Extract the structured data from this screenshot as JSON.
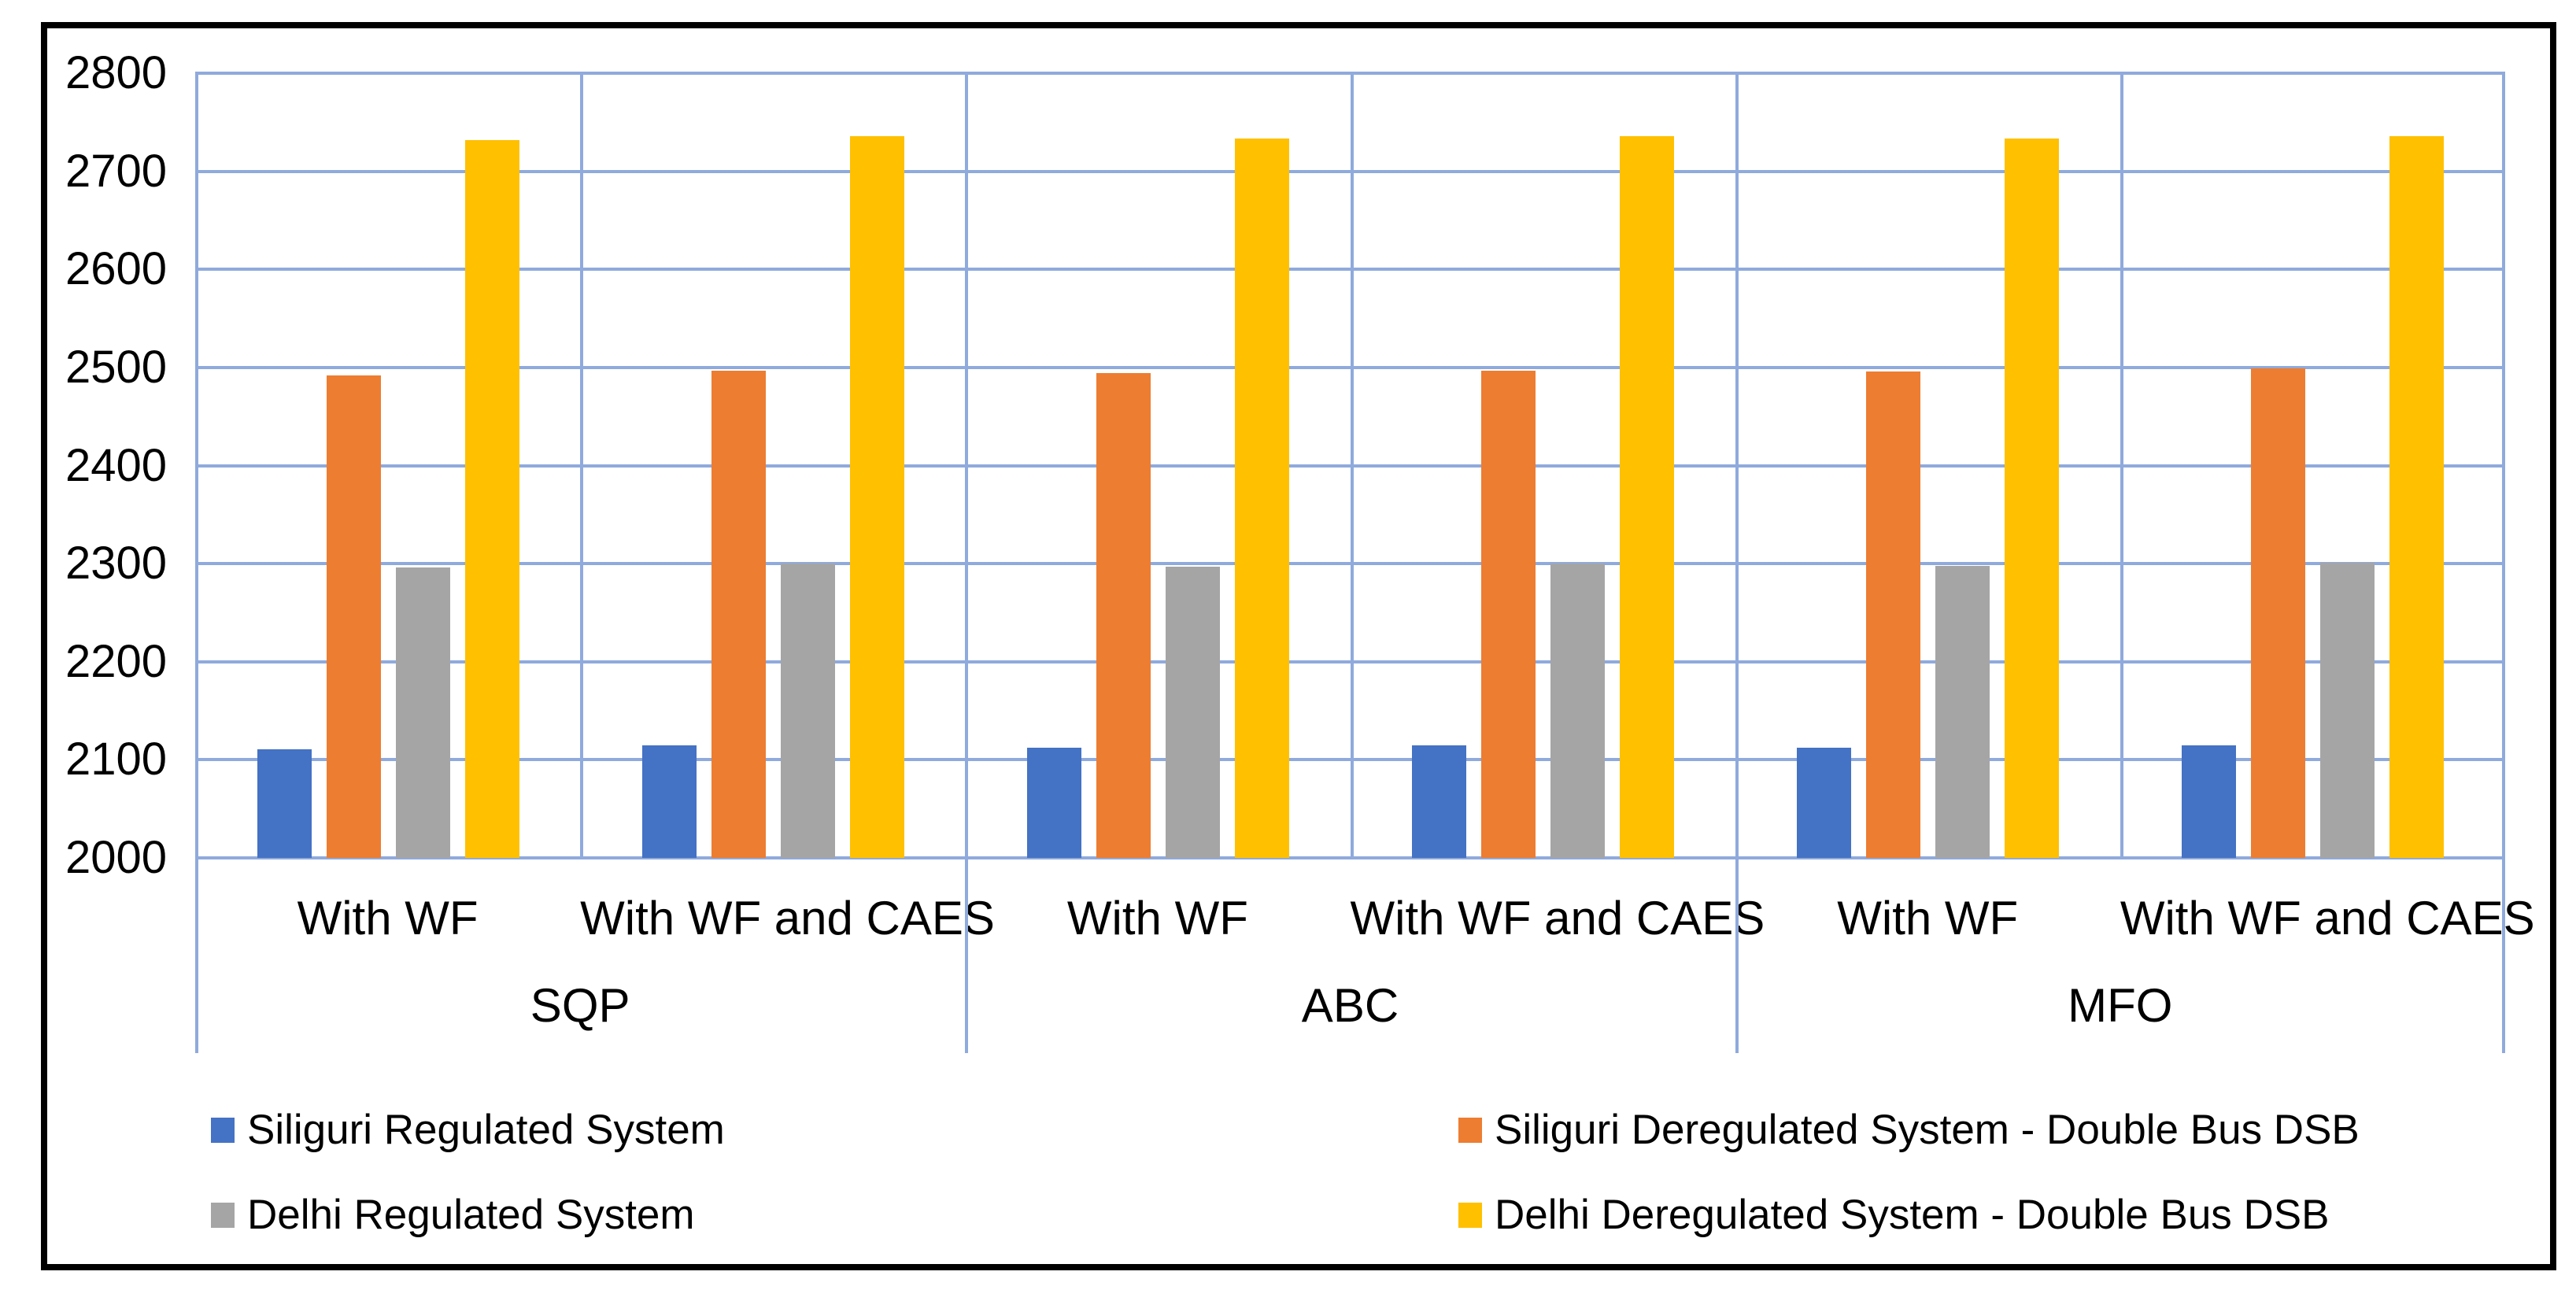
{
  "figure": {
    "background": "#ffffff",
    "border_color": "#000000",
    "gridline_color": "#8FAADC",
    "text_color": "#000000"
  },
  "chart_data": {
    "type": "bar",
    "title": "",
    "xlabel": "",
    "ylabel": "",
    "ylim": [
      2000,
      2800
    ],
    "yticks": [
      2000,
      2100,
      2200,
      2300,
      2400,
      2500,
      2600,
      2700,
      2800
    ],
    "grid": true,
    "legend_position": "bottom",
    "groups": [
      "SQP",
      "ABC",
      "MFO"
    ],
    "categories": [
      "With WF",
      "With WF and CAES",
      "With WF",
      "With WF and CAES",
      "With WF",
      "With WF and CAES"
    ],
    "series": [
      {
        "name": "Siliguri Regulated System",
        "color": "#4472C4",
        "values": [
          2111,
          2115,
          2112,
          2115,
          2112,
          2115
        ]
      },
      {
        "name": "Siliguri Deregulated System - Double Bus DSB",
        "color": "#ED7D31",
        "values": [
          2492,
          2497,
          2494,
          2497,
          2496,
          2499
        ]
      },
      {
        "name": "Delhi Regulated System",
        "color": "#A5A5A5",
        "values": [
          2296,
          2300,
          2297,
          2300,
          2298,
          2301
        ]
      },
      {
        "name": "Delhi Deregulated System - Double Bus DSB",
        "color": "#FFC000",
        "values": [
          2732,
          2736,
          2733,
          2736,
          2733,
          2736
        ]
      }
    ]
  },
  "legend": {
    "columns": [
      {
        "series_indexes": [
          0,
          2
        ]
      },
      {
        "series_indexes": [
          1,
          3
        ]
      }
    ]
  }
}
